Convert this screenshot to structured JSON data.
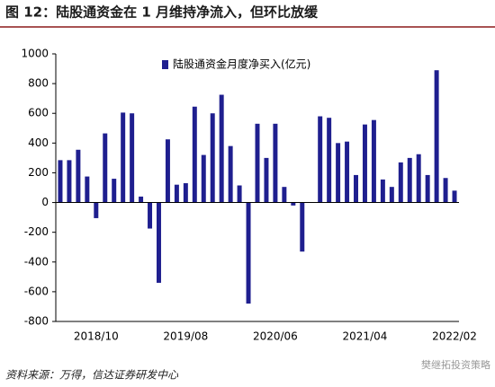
{
  "chart_data": {
    "type": "bar",
    "title": "图 12：陆股通资金在 1 月维持净流入，但环比放缓",
    "source": "资料来源：万得，信达证券研发中心",
    "watermark": "樊继拓投资策略",
    "legend": "陆股通资金月度净买入(亿元)",
    "color": "#1f1f8f",
    "categories": [
      null,
      null,
      null,
      null,
      "2018/10",
      null,
      null,
      null,
      null,
      null,
      null,
      null,
      null,
      null,
      "2019/08",
      null,
      null,
      null,
      null,
      null,
      null,
      null,
      null,
      null,
      "2020/06",
      null,
      null,
      null,
      null,
      null,
      null,
      null,
      null,
      null,
      "2021/04",
      null,
      null,
      null,
      null,
      null,
      null,
      null,
      null,
      null,
      "2022/02"
    ],
    "values": [
      285,
      285,
      355,
      175,
      -105,
      465,
      160,
      605,
      600,
      40,
      -175,
      -540,
      425,
      120,
      130,
      645,
      320,
      600,
      725,
      380,
      115,
      -680,
      530,
      300,
      530,
      105,
      -20,
      -330,
      0,
      580,
      570,
      400,
      410,
      185,
      525,
      555,
      155,
      105,
      270,
      300,
      325,
      185,
      890,
      165,
      80
    ],
    "ylim": [
      -800,
      1000
    ],
    "yticks": [
      -800,
      -600,
      -400,
      -200,
      0,
      200,
      400,
      600,
      800,
      1000
    ]
  }
}
